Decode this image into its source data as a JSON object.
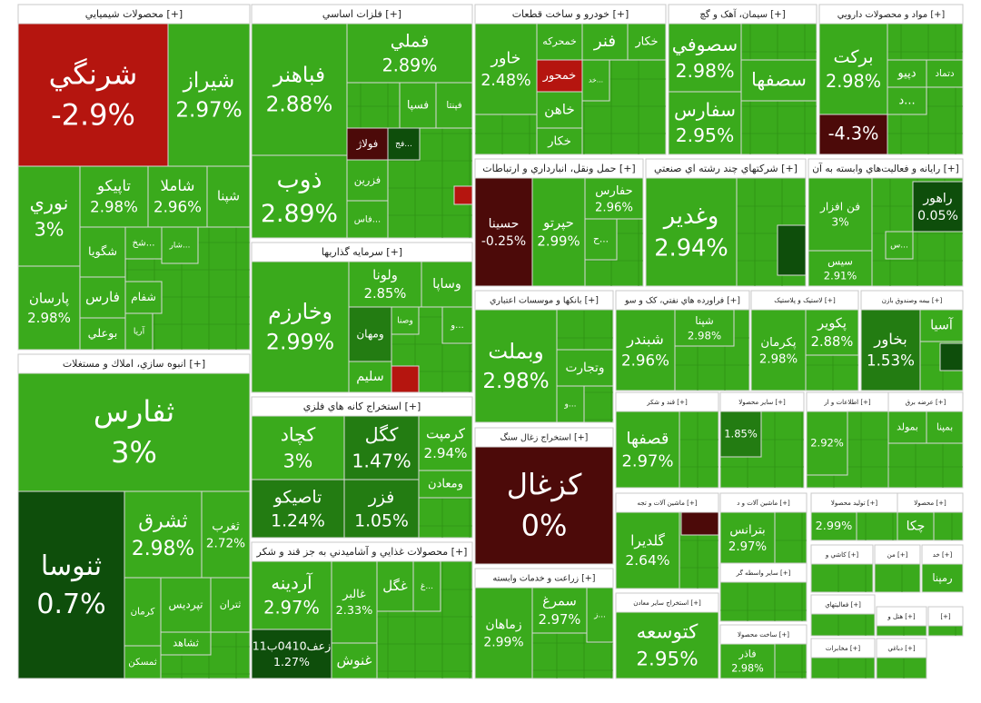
{
  "groups": [
    {
      "title": "محصولات شيميايي [+]",
      "tiles": [
        {
          "name": "شرنگي",
          "label": "-2.9%",
          "color": "#b5150f"
        },
        {
          "name": "شيراز",
          "label": "2.97%",
          "color": "#3aaa1c"
        },
        {
          "name": "نوري",
          "label": "3%",
          "color": "#3aaa1c"
        },
        {
          "name": "پارسان",
          "label": "2.98%",
          "color": "#3aaa1c"
        },
        {
          "name": "تاپيکو",
          "label": "2.98%",
          "color": "#3aaa1c"
        },
        {
          "name": "شاملا",
          "label": "2.96%",
          "color": "#3aaa1c"
        },
        {
          "name": "شپنا",
          "color": "#3aaa1c"
        },
        {
          "name": "شگويا",
          "color": "#3aaa1c"
        },
        {
          "name": "فارس",
          "color": "#3aaa1c"
        },
        {
          "name": "بوعلي",
          "color": "#3aaa1c"
        },
        {
          "name": "شخ...",
          "color": "#3aaa1c"
        },
        {
          "name": "شفام",
          "color": "#3aaa1c"
        },
        {
          "name": "آريا",
          "color": "#3aaa1c"
        },
        {
          "name": "شار...",
          "color": "#3aaa1c"
        }
      ]
    },
    {
      "title": "انبوه سازي، املاك و مستغلات [+]",
      "tiles": [
        {
          "name": "ثفارس",
          "label": "3%",
          "color": "#3aaa1c"
        },
        {
          "name": "ثنوسا",
          "label": "0.7%",
          "color": "#0e4e0b"
        },
        {
          "name": "ثشرق",
          "label": "2.98%",
          "color": "#3aaa1c"
        },
        {
          "name": "ثغرب",
          "label": "2.72%",
          "color": "#3aaa1c"
        },
        {
          "name": "کرمان",
          "color": "#3aaa1c"
        },
        {
          "name": "تپرديس",
          "color": "#3aaa1c"
        },
        {
          "name": "ثتران",
          "color": "#3aaa1c"
        },
        {
          "name": "ثشاهد",
          "color": "#3aaa1c"
        },
        {
          "name": "ثمسکن",
          "color": "#3aaa1c"
        }
      ]
    },
    {
      "title": "فلزات اساسي [+]",
      "tiles": [
        {
          "name": "فباهنر",
          "label": "2.88%",
          "color": "#3aaa1c"
        },
        {
          "name": "ذوب",
          "label": "2.89%",
          "color": "#3aaa1c"
        },
        {
          "name": "فملي",
          "label": "2.89%",
          "color": "#3aaa1c"
        },
        {
          "name": "فسپا",
          "color": "#3aaa1c"
        },
        {
          "name": "فپنتا",
          "color": "#3aaa1c"
        },
        {
          "name": "فولاژ",
          "color": "#4c0a09"
        },
        {
          "name": "فج...",
          "color": "#0e4e0b"
        },
        {
          "name": "فزرين",
          "color": "#3aaa1c"
        },
        {
          "name": "فاس...",
          "color": "#3aaa1c"
        }
      ]
    },
    {
      "title": "سرمايه گذاريها [+]",
      "tiles": [
        {
          "name": "وخارزم",
          "label": "2.99%",
          "color": "#3aaa1c"
        },
        {
          "name": "ولونا",
          "label": "2.85%",
          "color": "#3aaa1c"
        },
        {
          "name": "وساپا",
          "color": "#3aaa1c"
        },
        {
          "name": "ومهان",
          "color": "#237c12"
        },
        {
          "name": "وصنا",
          "color": "#3aaa1c"
        },
        {
          "name": "و...",
          "color": "#3aaa1c"
        },
        {
          "name": "سليم",
          "color": "#3aaa1c"
        }
      ]
    },
    {
      "title": "استخراج کانه هاي فلزي [+]",
      "tiles": [
        {
          "name": "کچاد",
          "label": "3%",
          "color": "#3aaa1c"
        },
        {
          "name": "کگل",
          "label": "1.47%",
          "color": "#237c12"
        },
        {
          "name": "کرمپت",
          "label": "2.94%",
          "color": "#3aaa1c"
        },
        {
          "name": "تاصيکو",
          "label": "1.24%",
          "color": "#237c12"
        },
        {
          "name": "فزر",
          "label": "1.05%",
          "color": "#237c12"
        },
        {
          "name": "ومعادن",
          "color": "#3aaa1c"
        }
      ]
    },
    {
      "title": "محصولات غذايي و آشاميدني به جز قند و شکر [+]",
      "tiles": [
        {
          "name": "آردينه",
          "label": "2.97%",
          "color": "#3aaa1c"
        },
        {
          "name": "زعف0410ب11",
          "label": "1.27%",
          "color": "#0e4e0b"
        },
        {
          "name": "غالبر",
          "label": "2.33%",
          "color": "#3aaa1c"
        },
        {
          "name": "غگل",
          "color": "#3aaa1c"
        },
        {
          "name": "غ...",
          "color": "#3aaa1c"
        },
        {
          "name": "غنوش",
          "color": "#3aaa1c"
        }
      ]
    },
    {
      "title": "خودرو و ساخت قطعات [+]",
      "tiles": [
        {
          "name": "خاور",
          "label": "2.48%",
          "color": "#3aaa1c"
        },
        {
          "name": "خمحرکه",
          "color": "#3aaa1c"
        },
        {
          "name": "فنر",
          "color": "#3aaa1c"
        },
        {
          "name": "خکار",
          "color": "#3aaa1c"
        },
        {
          "name": "خمحور",
          "color": "#b5150f"
        },
        {
          "name": "خد...",
          "color": "#3aaa1c"
        },
        {
          "name": "خاهن",
          "color": "#3aaa1c"
        },
        {
          "name": "خکار",
          "color": "#3aaa1c"
        }
      ]
    },
    {
      "title": "حمل ونقل، انبارداري و ارتباطات [+]",
      "tiles": [
        {
          "name": "حسينا",
          "label": "-0.25%",
          "color": "#4c0a09"
        },
        {
          "name": "حپرتو",
          "label": "2.99%",
          "color": "#3aaa1c"
        },
        {
          "name": "حفارس",
          "label": "2.96%",
          "color": "#3aaa1c"
        },
        {
          "name": "ح...",
          "color": "#3aaa1c"
        }
      ]
    },
    {
      "title": "بانکها و موسسات اعتباري [+]",
      "tiles": [
        {
          "name": "وبملت",
          "label": "2.98%",
          "color": "#3aaa1c"
        },
        {
          "name": "وتجارت",
          "color": "#3aaa1c"
        },
        {
          "name": "و...",
          "color": "#3aaa1c"
        }
      ]
    },
    {
      "title": "استخراج زغال سنگ [+]",
      "tiles": [
        {
          "name": "کزغال",
          "label": "0%",
          "color": "#4c0a09"
        }
      ]
    },
    {
      "title": "زراعت و خدمات وابسته [+]",
      "tiles": [
        {
          "name": "زماهان",
          "label": "2.99%",
          "color": "#3aaa1c"
        },
        {
          "name": "سمرغ",
          "label": "2.97%",
          "color": "#3aaa1c"
        },
        {
          "name": "ز...",
          "color": "#3aaa1c"
        }
      ]
    },
    {
      "title": "سيمان، آهک و گچ [+]",
      "tiles": [
        {
          "name": "سصوفي",
          "label": "2.98%",
          "color": "#3aaa1c"
        },
        {
          "name": "سفارس",
          "label": "2.95%",
          "color": "#3aaa1c"
        },
        {
          "name": "سصفها",
          "color": "#3aaa1c"
        }
      ]
    },
    {
      "title": "شرکتهاي چند رشته اي صنعتي [+]",
      "tiles": [
        {
          "name": "وغدير",
          "label": "2.94%",
          "color": "#3aaa1c"
        }
      ]
    },
    {
      "title": "فراورده هاي نفتي، کک و سو [+]",
      "tiles": [
        {
          "name": "شبندر",
          "label": "2.96%",
          "color": "#3aaa1c"
        },
        {
          "name": "شپنا",
          "label": "2.98%",
          "color": "#3aaa1c"
        }
      ]
    },
    {
      "title": "قند و شکر [+]",
      "tiles": [
        {
          "name": "قصفها",
          "label": "2.97%",
          "color": "#3aaa1c"
        }
      ]
    },
    {
      "title": "ماشين آلات و تجه [+]",
      "tiles": [
        {
          "name": "گلديرا",
          "label": "2.64%",
          "color": "#3aaa1c"
        }
      ]
    },
    {
      "title": "استخراج ساير معادن [+]",
      "tiles": [
        {
          "name": "کتوسعه",
          "label": "2.95%",
          "color": "#3aaa1c"
        }
      ]
    },
    {
      "title": "مواد و محصولات دارويي [+]",
      "tiles": [
        {
          "name": "برکت",
          "label": "2.98%",
          "color": "#3aaa1c"
        },
        {
          "label": "-4.3%",
          "color": "#4c0a09"
        },
        {
          "name": "دپيو",
          "color": "#3aaa1c"
        },
        {
          "name": "دتماد",
          "color": "#3aaa1c"
        },
        {
          "name": "د...",
          "color": "#3aaa1c"
        }
      ]
    },
    {
      "title": "رايانه و فعاليت‌هاي وابسته به آن [+]",
      "tiles": [
        {
          "name": "فن افزار",
          "label": "3%",
          "color": "#3aaa1c"
        },
        {
          "name": "راهور",
          "label": "0.05%",
          "color": "#0e4e0b"
        },
        {
          "name": "سيس",
          "label": "2.91%",
          "color": "#3aaa1c"
        },
        {
          "name": "س...",
          "color": "#3aaa1c"
        }
      ]
    },
    {
      "title": "لاستيک و پلاستيک [+]",
      "tiles": [
        {
          "name": "پکرمان",
          "label": "2.98%",
          "color": "#3aaa1c"
        },
        {
          "name": "پکوير",
          "label": "2.88%",
          "color": "#3aaa1c"
        }
      ]
    },
    {
      "title": "بيمه وصندوق بازن [+]",
      "tiles": [
        {
          "name": "بخاور",
          "label": "1.53%",
          "color": "#237c12"
        },
        {
          "name": "آسيا",
          "color": "#3aaa1c"
        }
      ]
    },
    {
      "title": "ساير محصولا [+]",
      "tiles": [
        {
          "label": "1.85%",
          "color": "#237c12"
        }
      ]
    },
    {
      "title": "اطلاعات و ار [+]",
      "tiles": [
        {
          "label": "2.92%",
          "color": "#3aaa1c"
        }
      ]
    },
    {
      "title": "عرضه برق [+]",
      "tiles": [
        {
          "name": "بمپنا",
          "color": "#3aaa1c"
        },
        {
          "name": "بمولد",
          "color": "#3aaa1c"
        }
      ]
    },
    {
      "title": "ماشين آلات و د [+]",
      "tiles": [
        {
          "name": "بترانس",
          "label": "2.97%",
          "color": "#3aaa1c"
        }
      ]
    },
    {
      "title": "توليد محصولا [+]",
      "tiles": [
        {
          "label": "2.99%",
          "color": "#3aaa1c"
        }
      ]
    },
    {
      "title": "محصولا [+]",
      "tiles": [
        {
          "name": "چکا",
          "color": "#3aaa1c"
        }
      ]
    },
    {
      "title": "ساير واسطه گر [+]",
      "tiles": []
    },
    {
      "title": "ساخت محصولا [+]",
      "tiles": [
        {
          "name": "فاذر",
          "label": "2.98%",
          "color": "#3aaa1c"
        }
      ]
    },
    {
      "title": "کاشي و [+]",
      "tiles": []
    },
    {
      "title": "من [+]",
      "tiles": []
    },
    {
      "title": "خد [+]",
      "tiles": [
        {
          "name": "رمپنا",
          "color": "#3aaa1c"
        }
      ]
    },
    {
      "title": "فعاليتهاي [+]",
      "tiles": []
    },
    {
      "title": "هتل و [+]",
      "tiles": []
    },
    {
      "title": "مخابرات [+]",
      "tiles": []
    },
    {
      "title": "دباغي [+]",
      "tiles": []
    },
    {
      "title": "[+]",
      "tiles": []
    }
  ]
}
